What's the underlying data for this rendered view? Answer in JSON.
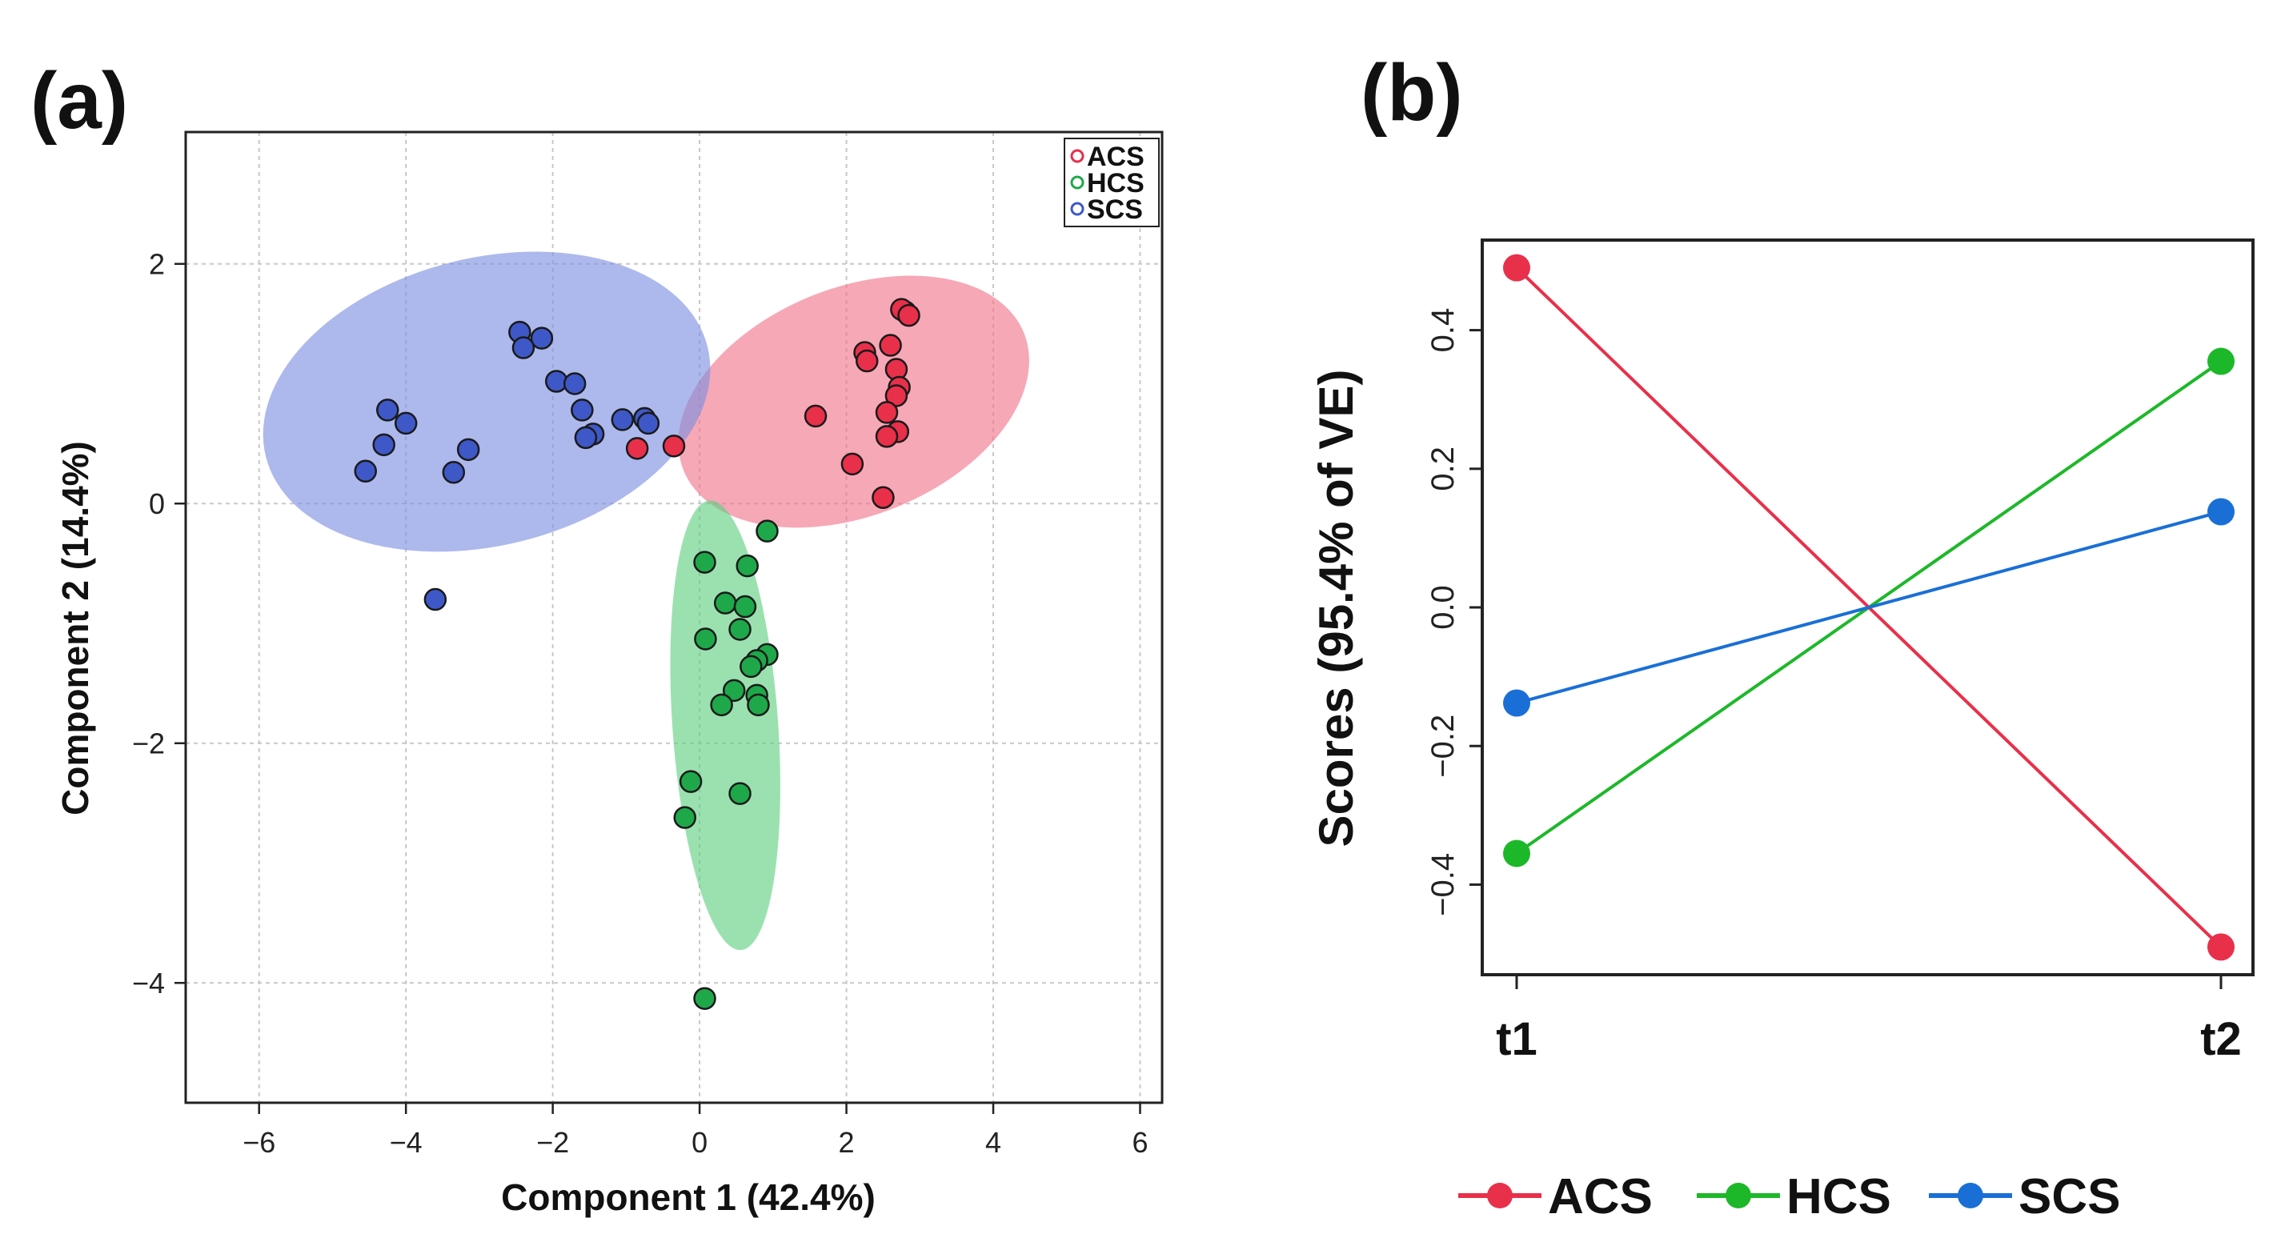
{
  "chart_data": [
    {
      "type": "scatter",
      "panel_label": "(a)",
      "xlabel": "Component 1 (42.4%)",
      "ylabel": "Component 2 (14.4%)",
      "xlim": [
        -7,
        6.3
      ],
      "ylim": [
        -5,
        3.1
      ],
      "xticks": [
        -6,
        -4,
        -2,
        0,
        2,
        4,
        6
      ],
      "yticks": [
        -4,
        -2,
        0,
        2
      ],
      "xtick_labels": [
        "−6",
        "−4",
        "−2",
        "0",
        "2",
        "4",
        "6"
      ],
      "ytick_labels": [
        "−4",
        "−2",
        "0",
        "2"
      ],
      "grid": true,
      "legend_position": "top-right",
      "series": [
        {
          "name": "ACS",
          "color": "#e8304a",
          "ellipse_fill": "#f0738a",
          "ellipse": {
            "cx": 2.1,
            "cy": 0.85,
            "rx": 2.5,
            "ry": 0.95,
            "angle_deg": 22
          },
          "points": [
            [
              2.8,
              1.6
            ],
            [
              2.75,
              1.62
            ],
            [
              2.85,
              1.57
            ],
            [
              2.25,
              1.26
            ],
            [
              2.28,
              1.19
            ],
            [
              2.6,
              1.32
            ],
            [
              2.68,
              1.12
            ],
            [
              2.72,
              0.97
            ],
            [
              2.68,
              0.9
            ],
            [
              2.55,
              0.76
            ],
            [
              1.58,
              0.73
            ],
            [
              2.7,
              0.6
            ],
            [
              2.55,
              0.56
            ],
            [
              2.08,
              0.33
            ],
            [
              2.5,
              0.05
            ],
            [
              -0.35,
              0.48
            ],
            [
              -0.85,
              0.46
            ]
          ]
        },
        {
          "name": "HCS",
          "color": "#1fa84a",
          "ellipse_fill": "#5ecf7f",
          "ellipse": {
            "cx": 0.35,
            "cy": -1.85,
            "rx": 0.72,
            "ry": 1.88,
            "angle_deg": 4
          },
          "points": [
            [
              0.92,
              -0.23
            ],
            [
              0.07,
              -0.49
            ],
            [
              0.65,
              -0.52
            ],
            [
              0.35,
              -0.83
            ],
            [
              0.62,
              -0.86
            ],
            [
              0.08,
              -1.13
            ],
            [
              0.55,
              -1.05
            ],
            [
              0.92,
              -1.26
            ],
            [
              0.78,
              -1.31
            ],
            [
              0.7,
              -1.36
            ],
            [
              0.47,
              -1.56
            ],
            [
              0.78,
              -1.6
            ],
            [
              0.3,
              -1.68
            ],
            [
              0.8,
              -1.68
            ],
            [
              -0.12,
              -2.32
            ],
            [
              0.55,
              -2.42
            ],
            [
              -0.2,
              -2.62
            ],
            [
              0.07,
              -4.13
            ]
          ]
        },
        {
          "name": "SCS",
          "color": "#3f58c8",
          "ellipse_fill": "#7a8ee0",
          "ellipse": {
            "cx": -2.9,
            "cy": 0.85,
            "rx": 3.1,
            "ry": 1.2,
            "angle_deg": 14
          },
          "points": [
            [
              -2.45,
              1.43
            ],
            [
              -2.15,
              1.38
            ],
            [
              -2.4,
              1.3
            ],
            [
              -1.95,
              1.02
            ],
            [
              -1.7,
              1.0
            ],
            [
              -1.6,
              0.78
            ],
            [
              -4.25,
              0.78
            ],
            [
              -4.0,
              0.67
            ],
            [
              -1.05,
              0.7
            ],
            [
              -0.75,
              0.71
            ],
            [
              -0.7,
              0.67
            ],
            [
              -1.45,
              0.58
            ],
            [
              -1.55,
              0.55
            ],
            [
              -4.3,
              0.49
            ],
            [
              -3.15,
              0.45
            ],
            [
              -4.55,
              0.27
            ],
            [
              -3.35,
              0.26
            ],
            [
              -3.6,
              -0.8
            ]
          ]
        }
      ]
    },
    {
      "type": "line",
      "panel_label": "(b)",
      "xlabel": "",
      "ylabel": "Scores (95.4% of VE)",
      "categories": [
        "t1",
        "t2"
      ],
      "ylim": [
        -0.53,
        0.53
      ],
      "yticks": [
        -0.4,
        -0.2,
        0.0,
        0.2,
        0.4
      ],
      "ytick_labels": [
        "−0.4",
        "−0.2",
        "0.0",
        "0.2",
        "0.4"
      ],
      "grid": false,
      "legend_position": "bottom",
      "series": [
        {
          "name": "ACS",
          "color": "#e8304a",
          "values": [
            0.49,
            -0.49
          ]
        },
        {
          "name": "HCS",
          "color": "#1db82a",
          "values": [
            -0.355,
            0.355
          ]
        },
        {
          "name": "SCS",
          "color": "#1a6fd6",
          "values": [
            -0.138,
            0.138
          ]
        }
      ]
    }
  ]
}
